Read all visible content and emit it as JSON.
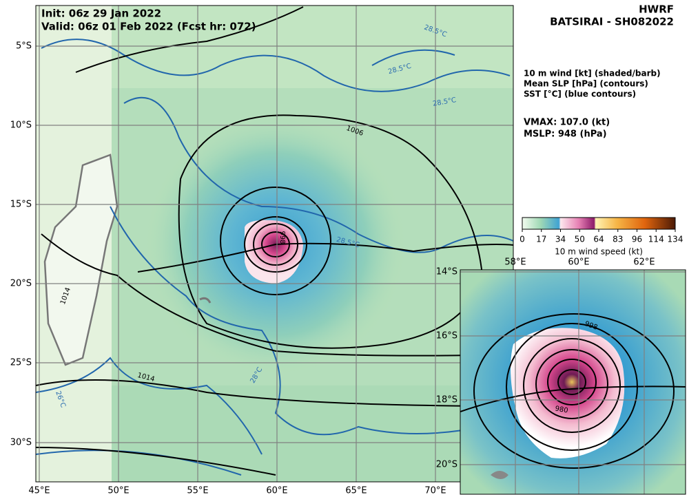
{
  "header": {
    "init": "Init:   06z 29 Jan 2022",
    "valid": "Valid: 06z 01 Feb 2022 (Fcst hr: 072)"
  },
  "title": {
    "model": "HWRF",
    "storm": "BATSIRAI - SH082022"
  },
  "legend": {
    "lines": [
      "10 m wind [kt] (shaded/barb)",
      "Mean SLP [hPa] (contours)",
      "SST [°C] (blue contours)"
    ],
    "vmax": "VMAX: 107.0 (kt)",
    "mslp": "MSLP:  948 (hPa)"
  },
  "colorbar": {
    "ticks": [
      0,
      17,
      34,
      50,
      64,
      83,
      96,
      114,
      134
    ],
    "label": "10 m wind speed (kt)"
  },
  "main_map": {
    "lat_labels": [
      "5°S",
      "10°S",
      "15°S",
      "20°S",
      "25°S",
      "30°S"
    ],
    "lon_labels": [
      "45°E",
      "50°E",
      "55°E",
      "60°E",
      "65°E",
      "70°E"
    ],
    "contour_labels": [
      "1006",
      "1014",
      "1014",
      "28.5°C",
      "28.5°C",
      "28.5°C",
      "28.5°C",
      "28°C",
      "26°C",
      "998"
    ]
  },
  "inset": {
    "lat_labels": [
      "14°S",
      "16°S",
      "18°S",
      "20°S"
    ],
    "lon_labels": [
      "58°E",
      "60°E",
      "62°E"
    ],
    "contour_labels": [
      "998",
      "980"
    ]
  }
}
